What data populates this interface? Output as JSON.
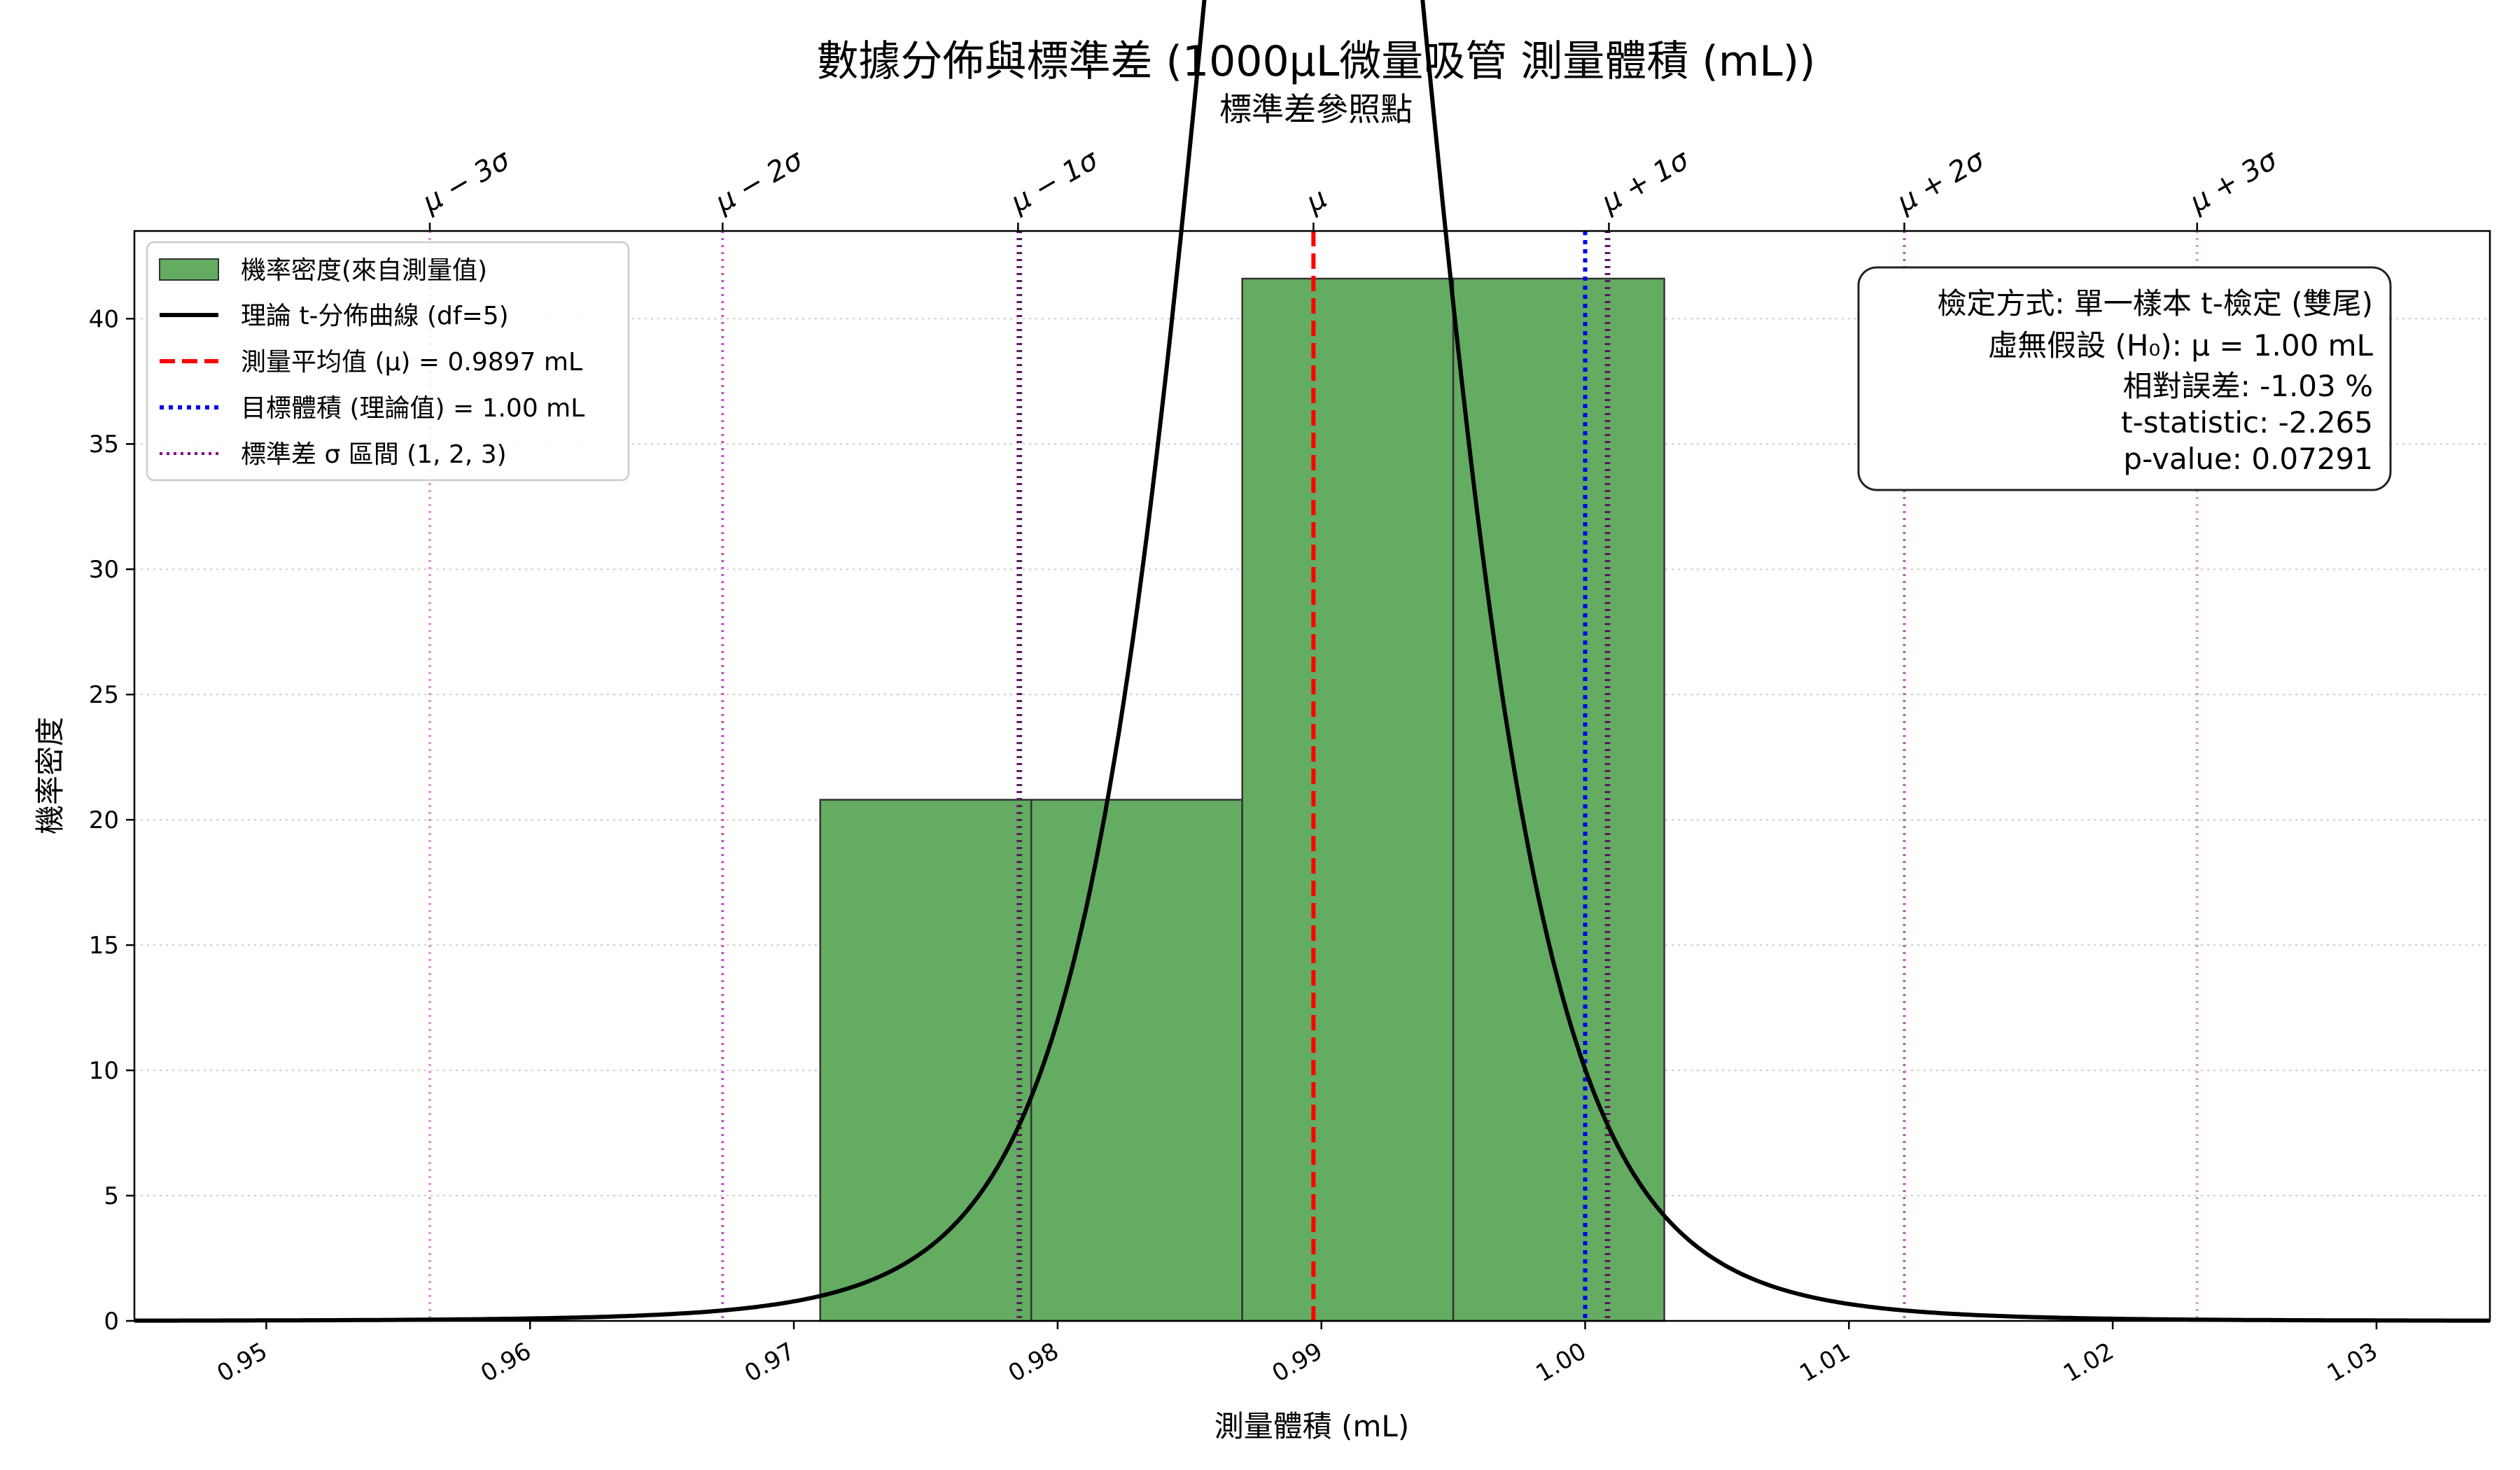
{
  "chart_data": {
    "type": "bar",
    "title": "數據分佈與標準差 (1000µL微量吸管 測量體積 (mL))",
    "subtitle": "標準差參照點",
    "xlabel": "測量體積 (mL)",
    "ylabel": "機率密度",
    "xlim": [
      0.945,
      1.0343
    ],
    "ylim": [
      0,
      43.5
    ],
    "grid": "y-dotted",
    "x_ticks": [
      0.95,
      0.96,
      0.97,
      0.98,
      0.99,
      1.0,
      1.01,
      1.02,
      1.03
    ],
    "x_tick_labels": [
      "0.95",
      "0.96",
      "0.97",
      "0.98",
      "0.99",
      "1.00",
      "1.01",
      "1.02",
      "1.03"
    ],
    "y_ticks": [
      0,
      5,
      10,
      15,
      20,
      25,
      30,
      35,
      40
    ],
    "y_tick_labels": [
      "0",
      "5",
      "10",
      "15",
      "20",
      "25",
      "30",
      "35",
      "40"
    ],
    "histogram": {
      "name": "機率密度(來自測量值)",
      "color": "#63ac62",
      "bins": [
        {
          "x0": 0.971,
          "x1": 0.979,
          "value": 20.8
        },
        {
          "x0": 0.979,
          "x1": 0.987,
          "value": 20.8
        },
        {
          "x0": 0.987,
          "x1": 0.995,
          "value": 41.6
        },
        {
          "x0": 0.995,
          "x1": 1.003,
          "value": 41.6
        }
      ]
    },
    "t_curve": {
      "name": "理論 t-分佈曲線 (df=5)",
      "df": 5,
      "mean": 0.9897,
      "scale": 0.00455,
      "color": "#000000"
    },
    "mean_line": {
      "name": "測量平均值 (μ) = 0.9897 mL",
      "x": 0.9897,
      "color": "#ff0000"
    },
    "target_line": {
      "name": "目標體積 (理論值) = 1.00 mL",
      "x": 1.0,
      "color": "#0000ee"
    },
    "sigma_lines": {
      "name": "標準差 σ 區間 (1, 2, 3)",
      "sigma": 0.01118,
      "ticks": [
        {
          "label": "μ − 3σ",
          "x": 0.9562,
          "color": "#da9ad6"
        },
        {
          "label": "μ − 2σ",
          "x": 0.9673,
          "color": "#b860ba"
        },
        {
          "label": "μ − 1σ",
          "x": 0.9785,
          "color": "#800080"
        },
        {
          "label": "μ",
          "x": 0.9897,
          "color": ""
        },
        {
          "label": "μ + 1σ",
          "x": 1.0009,
          "color": "#800080"
        },
        {
          "label": "μ + 2σ",
          "x": 1.0121,
          "color": "#b860ba"
        },
        {
          "label": "μ + 3σ",
          "x": 1.0232,
          "color": "#da9ad6"
        }
      ]
    },
    "sample_std_lines": [
      0.9786,
      1.0008
    ],
    "legend_position": "top-left",
    "legend": [
      {
        "key": "hist",
        "label": "機率密度(來自測量值)"
      },
      {
        "key": "curve",
        "label": "理論 t-分佈曲線 (df=5)"
      },
      {
        "key": "mean",
        "label": "測量平均值 (μ) = 0.9897 mL"
      },
      {
        "key": "target",
        "label": "目標體積 (理論值) = 1.00 mL"
      },
      {
        "key": "sigma",
        "label": "標準差 σ 區間 (1, 2, 3)"
      }
    ],
    "stats_box_position": "top-right",
    "stats_box": [
      "檢定方式: 單一樣本 t-檢定 (雙尾)",
      "虛無假設 (H₀): μ = 1.00 mL",
      "相對誤差: -1.03 %",
      "t-statistic: -2.265",
      "p-value: 0.07291"
    ]
  }
}
